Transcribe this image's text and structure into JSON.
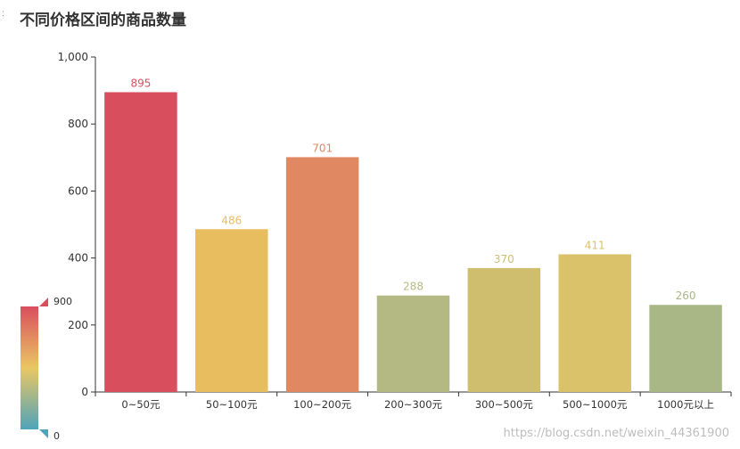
{
  "title": "不同价格区间的商品数量",
  "corner_mark": ":",
  "watermark": "https://blog.csdn.net/weixin_44361900",
  "visual_map": {
    "max_label": "900",
    "min_label": "0",
    "min": 0,
    "max": 900,
    "colors": [
      "#50a3ba",
      "#eac763",
      "#d94e5d"
    ]
  },
  "chart_data": {
    "type": "bar",
    "categories": [
      "0~50元",
      "50~100元",
      "100~200元",
      "200~300元",
      "300~500元",
      "500~1000元",
      "1000元以上"
    ],
    "values": [
      895,
      486,
      701,
      288,
      370,
      411,
      260
    ],
    "ylim": [
      0,
      1000
    ],
    "yticks": [
      "0",
      "200",
      "400",
      "600",
      "800",
      "1,000"
    ],
    "grid": false,
    "colors": [
      "#d94e5d",
      "#e8bd5f",
      "#e08861",
      "#b4b984",
      "#cfbe6e",
      "#dac26b",
      "#a9b786"
    ]
  }
}
